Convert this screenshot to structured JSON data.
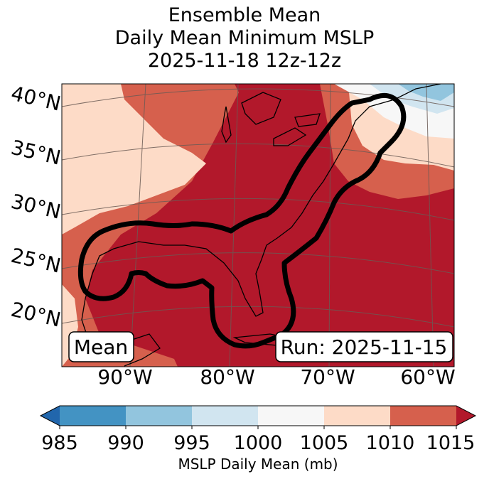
{
  "title": {
    "line1": "Ensemble Mean",
    "line2": "Daily Mean Minimum MSLP",
    "line3": "2025-11-18 12z-12z"
  },
  "map": {
    "lat_labels": [
      "40°N",
      "35°N",
      "30°N",
      "25°N",
      "20°N"
    ],
    "lon_labels": [
      "90°W",
      "80°W",
      "70°W",
      "60°W"
    ],
    "mean_label": "Mean",
    "run_label": "Run: 2025-11-15",
    "contour_color": "#000000",
    "region_colors": {
      "1010-1015": "#d6604d",
      "1005-1010": "#fddbc7",
      "1000-1005": "#f7f7f7",
      "995-1000": "#d1e5f0",
      "990-995": "#92c5de",
      "1015+": "#b2182b"
    }
  },
  "colorbar": {
    "label": "MSLP Daily Mean (mb)",
    "ticks": [
      "985",
      "990",
      "995",
      "1000",
      "1005",
      "1010",
      "1015"
    ],
    "colors": [
      "#2166ac",
      "#4393c3",
      "#92c5de",
      "#d1e5f0",
      "#f7f7f7",
      "#fddbc7",
      "#d6604d",
      "#b2182b"
    ]
  }
}
